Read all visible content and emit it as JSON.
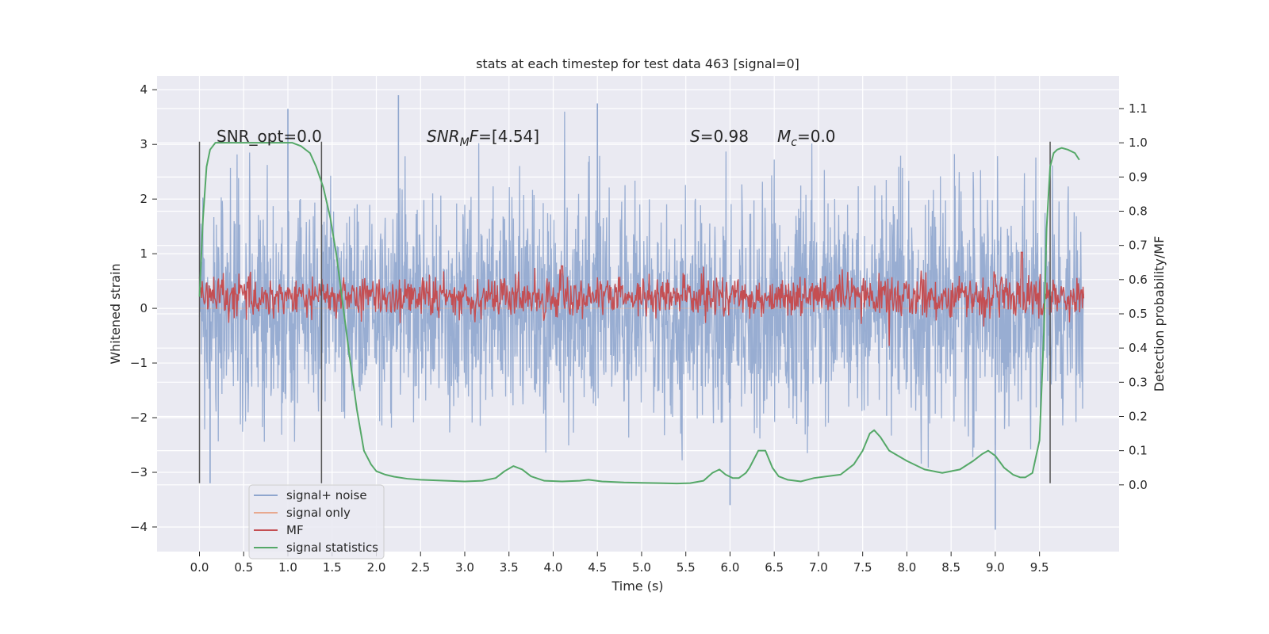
{
  "chart_data": {
    "type": "line",
    "title": "stats at each timestep for test data 463 [signal=0]",
    "xlabel": "Time (s)",
    "ylabel": "Whitened strain",
    "y2label": "Detection probability/MF",
    "xlim": [
      -0.48,
      10.4
    ],
    "ylim": [
      -4.45,
      4.25
    ],
    "y2lim": [
      -0.195,
      1.195
    ],
    "x_ticks": [
      0.0,
      0.5,
      1.0,
      1.5,
      2.0,
      2.5,
      3.0,
      3.5,
      4.0,
      4.5,
      5.0,
      5.5,
      6.0,
      6.5,
      7.0,
      7.5,
      8.0,
      8.5,
      9.0,
      9.5
    ],
    "x_tick_labels": [
      "0.0",
      "0.5",
      "1.0",
      "1.5",
      "2.0",
      "2.5",
      "3.0",
      "3.5",
      "4.0",
      "4.5",
      "5.0",
      "5.5",
      "6.0",
      "6.5",
      "7.0",
      "7.5",
      "8.0",
      "8.5",
      "9.0",
      "9.5"
    ],
    "y_ticks": [
      -4,
      -3,
      -2,
      -1,
      0,
      1,
      2,
      3,
      4
    ],
    "y_tick_labels": [
      "−4",
      "−3",
      "−2",
      "−1",
      "0",
      "1",
      "2",
      "3",
      "4"
    ],
    "y2_ticks": [
      0.0,
      0.1,
      0.2,
      0.3,
      0.4,
      0.5,
      0.6,
      0.7,
      0.8,
      0.9,
      1.0,
      1.1
    ],
    "y2_tick_labels": [
      "0.0",
      "0.1",
      "0.2",
      "0.3",
      "0.4",
      "0.5",
      "0.6",
      "0.7",
      "0.8",
      "0.9",
      "1.0",
      "1.1"
    ],
    "grid": true,
    "legend_position": "lower-left",
    "series": [
      {
        "name": "signal+ noise",
        "color": "#8fa6ce",
        "x_range": [
          0.0,
          10.0
        ],
        "amplitude_band": [
          -1.3,
          1.3
        ],
        "notable_peaks": [
          {
            "x": 0.12,
            "y": -3.2
          },
          {
            "x": 1.0,
            "y": 3.65
          },
          {
            "x": 2.25,
            "y": 3.9
          },
          {
            "x": 4.5,
            "y": 3.75
          },
          {
            "x": 6.0,
            "y": -3.6
          },
          {
            "x": 9.0,
            "y": -4.05
          }
        ]
      },
      {
        "name": "signal only",
        "color": "#e8a98f",
        "x": [
          0.0,
          10.0
        ],
        "y": [
          0.0,
          0.0
        ]
      },
      {
        "name": "MF",
        "color": "#c44e52",
        "axis": "right",
        "x_range": [
          0.0,
          10.0
        ],
        "band": [
          0.5,
          0.6
        ],
        "peaks": [
          {
            "x": 4.1,
            "y": 0.64
          },
          {
            "x": 9.3,
            "y": 0.68
          }
        ]
      },
      {
        "name": "signal statistics",
        "color": "#55a868",
        "axis": "right",
        "x": [
          0.0,
          0.04,
          0.08,
          0.12,
          0.18,
          0.25,
          0.35,
          0.5,
          0.7,
          0.9,
          1.05,
          1.15,
          1.25,
          1.32,
          1.4,
          1.48,
          1.55,
          1.62,
          1.7,
          1.78,
          1.86,
          1.94,
          2.0,
          2.1,
          2.2,
          2.35,
          2.5,
          2.7,
          3.0,
          3.2,
          3.35,
          3.45,
          3.55,
          3.65,
          3.75,
          3.9,
          4.1,
          4.3,
          4.4,
          4.55,
          4.8,
          5.0,
          5.2,
          5.4,
          5.55,
          5.7,
          5.8,
          5.88,
          5.95,
          6.03,
          6.1,
          6.18,
          6.22,
          6.32,
          6.4,
          6.48,
          6.55,
          6.65,
          6.8,
          6.95,
          7.1,
          7.25,
          7.4,
          7.5,
          7.58,
          7.63,
          7.7,
          7.8,
          7.9,
          8.0,
          8.2,
          8.4,
          8.6,
          8.75,
          8.85,
          8.92,
          9.0,
          9.1,
          9.2,
          9.28,
          9.34,
          9.42,
          9.5,
          9.55,
          9.58,
          9.62,
          9.66,
          9.7,
          9.75,
          9.82,
          9.9,
          9.95
        ],
        "y": [
          0.55,
          0.78,
          0.93,
          0.98,
          1.0,
          1.0,
          1.0,
          1.0,
          1.0,
          1.0,
          1.0,
          0.99,
          0.97,
          0.93,
          0.87,
          0.78,
          0.67,
          0.53,
          0.37,
          0.22,
          0.1,
          0.06,
          0.04,
          0.03,
          0.024,
          0.018,
          0.015,
          0.013,
          0.01,
          0.012,
          0.02,
          0.04,
          0.055,
          0.045,
          0.025,
          0.012,
          0.01,
          0.012,
          0.015,
          0.01,
          0.007,
          0.006,
          0.005,
          0.004,
          0.005,
          0.012,
          0.035,
          0.045,
          0.03,
          0.02,
          0.02,
          0.035,
          0.05,
          0.1,
          0.1,
          0.05,
          0.025,
          0.015,
          0.01,
          0.02,
          0.025,
          0.03,
          0.06,
          0.1,
          0.15,
          0.16,
          0.14,
          0.1,
          0.085,
          0.07,
          0.045,
          0.035,
          0.045,
          0.07,
          0.09,
          0.1,
          0.085,
          0.05,
          0.03,
          0.022,
          0.022,
          0.035,
          0.13,
          0.45,
          0.75,
          0.93,
          0.97,
          0.98,
          0.985,
          0.98,
          0.97,
          0.95
        ]
      }
    ],
    "vertical_lines": [
      0.0,
      1.38,
      9.62
    ],
    "vertical_line_range": [
      -3.2,
      3.05
    ],
    "annotations": [
      {
        "id": "snr-opt",
        "x": 0.2,
        "y": 3.1,
        "text": "SNR_opt=0.0",
        "italic": false
      },
      {
        "id": "snr-mf-sym",
        "x": 2.6,
        "y": 3.1,
        "text": "SNR",
        "italic": true,
        "sub": "M",
        "after": "F",
        "after_italic": true
      },
      {
        "id": "snr-mf-val",
        "x": 2.6,
        "y": 3.1,
        "text": "=[4.54]",
        "italic": false
      },
      {
        "id": "s-sym",
        "x": 5.6,
        "y": 3.1,
        "text": "S",
        "italic": true
      },
      {
        "id": "s-val",
        "x": 5.6,
        "y": 3.1,
        "text": "=0.98",
        "italic": false
      },
      {
        "id": "mc-sym",
        "x": 6.6,
        "y": 3.1,
        "text": "M",
        "italic": true,
        "sub": "c"
      },
      {
        "id": "mc-val",
        "x": 6.6,
        "y": 3.1,
        "text": "=0.0",
        "italic": false
      }
    ]
  }
}
